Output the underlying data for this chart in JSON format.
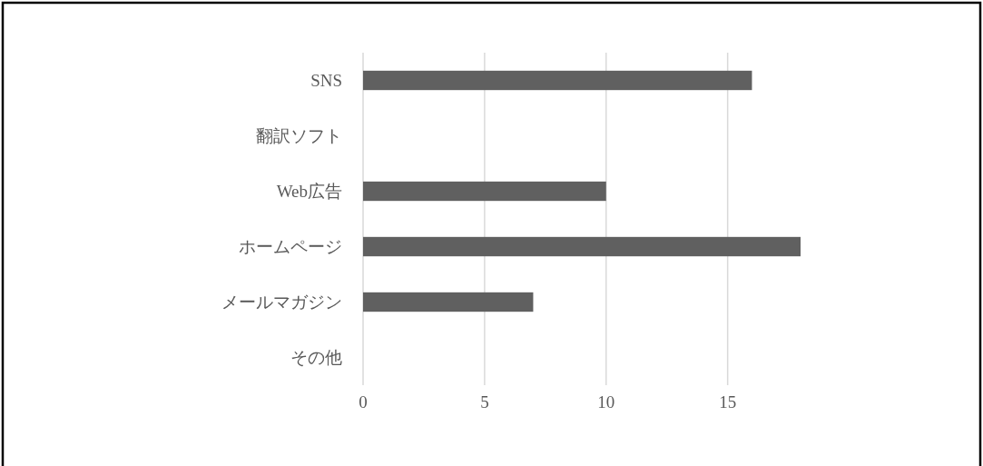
{
  "chart_data": {
    "type": "bar",
    "orientation": "horizontal",
    "categories": [
      "SNS",
      "翻訳ソフト",
      "Web広告",
      "ホームページ",
      "メールマガジン",
      "その他"
    ],
    "values": [
      16,
      0,
      10,
      18,
      7,
      0
    ],
    "color": "#606060",
    "xlim": [
      0,
      18
    ],
    "xticks": [
      0,
      5,
      10,
      15
    ],
    "grid": "x"
  }
}
